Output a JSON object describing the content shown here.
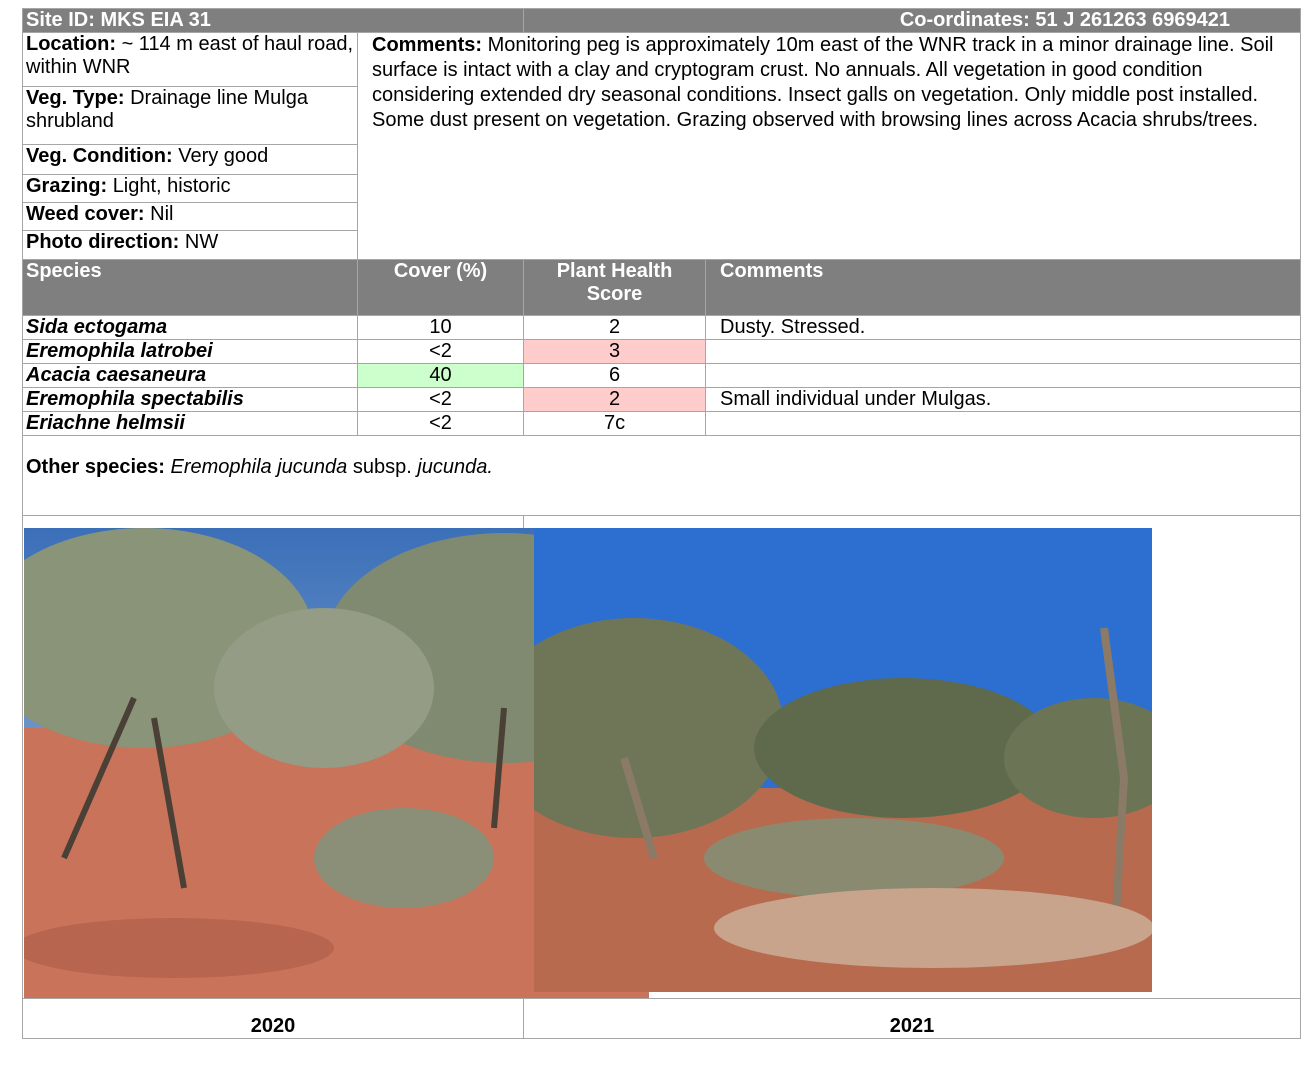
{
  "header": {
    "site_id": "Site ID: MKS EIA 31",
    "coordinates": "Co-ordinates: 51 J 261263 6969421"
  },
  "site_info": [
    {
      "label": "Location:",
      "value": "~ 114 m east of haul road, within WNR"
    },
    {
      "label": "Veg. Type:",
      "value": "Drainage line Mulga shrubland"
    },
    {
      "label": "Veg. Condition:",
      "value": "Very good"
    },
    {
      "label": "Grazing:",
      "value": "Light, historic"
    },
    {
      "label": "Weed cover:",
      "value": "Nil"
    },
    {
      "label": "Photo direction:",
      "value": "NW"
    }
  ],
  "comments": {
    "label": "Comments:",
    "text": "Monitoring peg is approximately 10m east of the WNR track in a minor drainage line. Soil surface is intact with a clay and cryptogram crust. No annuals. All vegetation in good condition considering extended dry seasonal conditions. Insect galls on vegetation. Only middle post installed. Some dust present on vegetation. Grazing observed with browsing lines across Acacia shrubs/trees."
  },
  "species_table": {
    "headers": [
      "Species",
      "Cover (%)",
      "Plant Health Score",
      "Comments"
    ],
    "rows": [
      {
        "species": "Sida ectogama",
        "cover": "10",
        "health": "2",
        "comments": "Dusty. Stressed."
      },
      {
        "species": "Eremophila latrobei",
        "cover": "<2",
        "health": "3",
        "health_color": "#ffcccc"
      },
      {
        "species": "Acacia caesaneura",
        "cover": "40",
        "cover_color": "#ccffcc",
        "health": "6"
      },
      {
        "species": "Eremophila spectabilis",
        "cover": "<2",
        "health": "2",
        "health_color": "#ffcccc",
        "comments": "Small individual under Mulgas."
      },
      {
        "species": "Eriachne helmsii",
        "cover": "<2",
        "health": "7c"
      }
    ]
  },
  "other_species": [
    {
      "text": "Other species:",
      "style": "bold"
    },
    {
      "text": "Eremophila jucunda",
      "style": "italic"
    },
    {
      "text": "subsp.",
      "style": "normal"
    },
    {
      "text": "jucunda.",
      "style": "italic"
    }
  ],
  "photos": [
    {
      "caption": "2020"
    },
    {
      "caption": "2021"
    }
  ]
}
